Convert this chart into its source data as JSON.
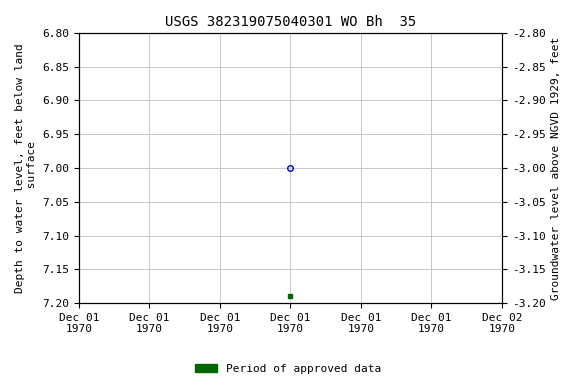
{
  "title": "USGS 382319075040301 WO Bh  35",
  "ylabel_left": "Depth to water level, feet below land\n surface",
  "ylabel_right": "Groundwater level above NGVD 1929, feet",
  "ylim_left": [
    6.8,
    7.2
  ],
  "ylim_right": [
    -2.8,
    -3.2
  ],
  "yticks_left": [
    6.8,
    6.85,
    6.9,
    6.95,
    7.0,
    7.05,
    7.1,
    7.15,
    7.2
  ],
  "yticks_right": [
    -2.8,
    -2.85,
    -2.9,
    -2.95,
    -3.0,
    -3.05,
    -3.1,
    -3.15,
    -3.2
  ],
  "data_point_x": 3.0,
  "data_point_y": 7.0,
  "data_point_color": "#0000cc",
  "data_point_marker": "o",
  "data_point_marker_size": 4,
  "approved_point_x": 3.0,
  "approved_point_y": 7.19,
  "approved_point_color": "#006600",
  "approved_point_marker": "s",
  "approved_point_marker_size": 3,
  "x_total": 6.0,
  "x_tick_positions": [
    0,
    1,
    2,
    3,
    4,
    5,
    6
  ],
  "x_tick_labels": [
    "Dec 01\n1970",
    "Dec 01\n1970",
    "Dec 01\n1970",
    "Dec 01\n1970",
    "Dec 01\n1970",
    "Dec 01\n1970",
    "Dec 02\n1970"
  ],
  "background_color": "#ffffff",
  "grid_color": "#c8c8c8",
  "legend_label": "Period of approved data",
  "legend_color": "#006600",
  "title_fontsize": 10,
  "axis_label_fontsize": 8,
  "tick_fontsize": 8,
  "legend_fontsize": 8
}
